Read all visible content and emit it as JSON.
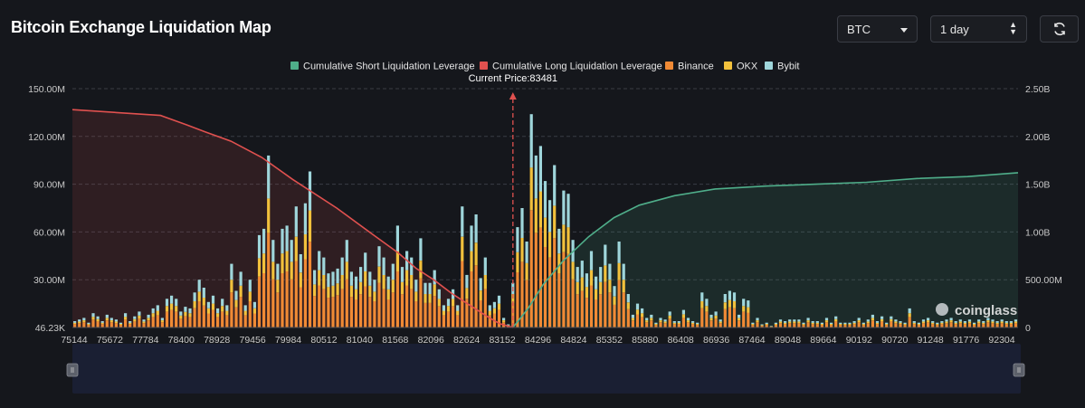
{
  "page": {
    "title": "Bitcoin Exchange Liquidation Map"
  },
  "controls": {
    "symbol": "BTC",
    "period": "1 day",
    "refresh_icon": "refresh-icon"
  },
  "chart_data": {
    "type": "bar",
    "current_price_label": "Current Price:83481",
    "current_price": 83481,
    "watermark": "coinglass",
    "legend": [
      {
        "name": "Cumulative Short Liquidation Leverage",
        "color": "#4fae8a"
      },
      {
        "name": "Cumulative Long Liquidation Leverage",
        "color": "#e0514f"
      },
      {
        "name": "Binance",
        "color": "#f08a35"
      },
      {
        "name": "OKX",
        "color": "#f2c13c"
      },
      {
        "name": "Bybit",
        "color": "#9fd6db"
      }
    ],
    "x_ticks": [
      "75144",
      "75672",
      "77784",
      "78400",
      "78928",
      "79456",
      "79984",
      "80512",
      "81040",
      "81568",
      "82096",
      "82624",
      "83152",
      "84296",
      "84824",
      "85352",
      "85880",
      "86408",
      "86936",
      "87464",
      "89048",
      "89664",
      "90192",
      "90720",
      "91248",
      "91776",
      "92304"
    ],
    "y_left": {
      "ticks": [
        "46.23K",
        "30.00M",
        "60.00M",
        "90.00M",
        "120.00M",
        "150.00M"
      ],
      "max": 150
    },
    "y_right": {
      "ticks": [
        "0",
        "500.00M",
        "1.00B",
        "1.50B",
        "2.00B",
        "2.50B"
      ],
      "max": 2.5
    },
    "bars_total_M": [
      4,
      5,
      6,
      3,
      9,
      7,
      4,
      8,
      6,
      5,
      3,
      9,
      4,
      7,
      10,
      5,
      8,
      12,
      14,
      6,
      18,
      20,
      18,
      10,
      13,
      12,
      22,
      30,
      25,
      16,
      20,
      12,
      18,
      14,
      40,
      23,
      35,
      14,
      30,
      16,
      58,
      62,
      108,
      55,
      40,
      62,
      64,
      55,
      76,
      46,
      78,
      98,
      36,
      48,
      44,
      34,
      35,
      37,
      44,
      55,
      35,
      32,
      38,
      47,
      35,
      30,
      51,
      44,
      32,
      40,
      64,
      38,
      48,
      44,
      30,
      56,
      28,
      28,
      36,
      24,
      14,
      18,
      24,
      14,
      76,
      33,
      64,
      71,
      31,
      44,
      14,
      16,
      20,
      6,
      2,
      28,
      63,
      75,
      54,
      134,
      108,
      114,
      92,
      80,
      102,
      62,
      86,
      84,
      55,
      38,
      42,
      34,
      48,
      32,
      38,
      52,
      40,
      26,
      54,
      40,
      21,
      8,
      15,
      12,
      6,
      8,
      3,
      6,
      5,
      10,
      4,
      4,
      11,
      6,
      4,
      3,
      22,
      18,
      8,
      10,
      5,
      21,
      23,
      22,
      8,
      18,
      17,
      3,
      6,
      2,
      3,
      1,
      3,
      5,
      4,
      5,
      5,
      5,
      3,
      6,
      4,
      4,
      3,
      6,
      3,
      7,
      3,
      3,
      3,
      4,
      6,
      3,
      5,
      8,
      4,
      7,
      3,
      7,
      5,
      4,
      3,
      12,
      4,
      3,
      5,
      6,
      4,
      3,
      4,
      5,
      6,
      4,
      5,
      4,
      5,
      3,
      5,
      4,
      6,
      5,
      4,
      5,
      4,
      4,
      5
    ],
    "long_cumulative_B": [
      [
        0,
        2.28
      ],
      [
        0.1,
        2.25
      ],
      [
        0.2,
        2.22
      ],
      [
        0.26,
        2.12
      ],
      [
        0.3,
        2.05
      ],
      [
        0.36,
        1.95
      ],
      [
        0.43,
        1.78
      ],
      [
        0.5,
        1.55
      ],
      [
        0.6,
        1.25
      ],
      [
        0.68,
        0.98
      ],
      [
        0.74,
        0.78
      ],
      [
        0.78,
        0.62
      ],
      [
        0.82,
        0.5
      ],
      [
        0.86,
        0.36
      ],
      [
        0.9,
        0.24
      ],
      [
        0.94,
        0.12
      ],
      [
        0.97,
        0.04
      ],
      [
        1,
        0
      ]
    ],
    "short_cumulative_B": [
      [
        0,
        0.0
      ],
      [
        0.03,
        0.2
      ],
      [
        0.06,
        0.45
      ],
      [
        0.1,
        0.7
      ],
      [
        0.15,
        0.95
      ],
      [
        0.2,
        1.15
      ],
      [
        0.25,
        1.28
      ],
      [
        0.32,
        1.38
      ],
      [
        0.4,
        1.45
      ],
      [
        0.5,
        1.48
      ],
      [
        0.6,
        1.5
      ],
      [
        0.7,
        1.52
      ],
      [
        0.8,
        1.56
      ],
      [
        0.9,
        1.58
      ],
      [
        1,
        1.62
      ]
    ]
  }
}
